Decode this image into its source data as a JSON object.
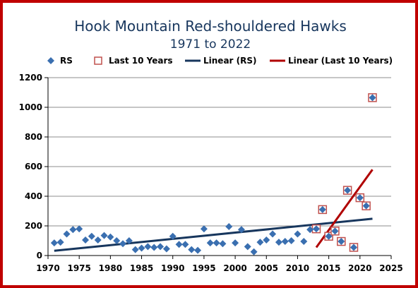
{
  "colors": {
    "border": "#c00000",
    "rs_marker": "#3a6fb0",
    "last10_marker": "#c0504d",
    "linear_rs": "#17365d",
    "linear_last10": "#b00000"
  },
  "chart_data": {
    "type": "scatter",
    "title": "Hook Mountain Red-shouldered Hawks",
    "subtitle": "1971 to 2022",
    "xlabel": "",
    "ylabel": "",
    "xlim": [
      1970,
      2025
    ],
    "ylim": [
      0,
      1200
    ],
    "xticks": [
      1970,
      1975,
      1980,
      1985,
      1990,
      1995,
      2000,
      2005,
      2010,
      2015,
      2020,
      2025
    ],
    "yticks": [
      0,
      200,
      400,
      600,
      800,
      1000,
      1200
    ],
    "grid": "horizontal",
    "legend": {
      "placement": "top",
      "entries": [
        "RS",
        "Last 10 Years",
        "Linear (RS)",
        "Linear (Last 10 Years)"
      ]
    },
    "series": [
      {
        "name": "RS",
        "marker": "diamond",
        "x": [
          1971,
          1972,
          1973,
          1974,
          1975,
          1976,
          1977,
          1978,
          1979,
          1980,
          1981,
          1982,
          1983,
          1984,
          1985,
          1986,
          1987,
          1988,
          1989,
          1990,
          1991,
          1992,
          1993,
          1994,
          1995,
          1996,
          1997,
          1998,
          1999,
          2000,
          2001,
          2002,
          2003,
          2004,
          2005,
          2006,
          2007,
          2008,
          2009,
          2010,
          2011,
          2012,
          2013,
          2014,
          2015,
          2016,
          2017,
          2018,
          2019,
          2020,
          2021,
          2022
        ],
        "y": [
          85,
          90,
          145,
          175,
          180,
          105,
          130,
          105,
          135,
          125,
          100,
          80,
          100,
          40,
          50,
          60,
          55,
          60,
          45,
          130,
          75,
          75,
          40,
          35,
          180,
          85,
          85,
          80,
          195,
          85,
          175,
          60,
          25,
          90,
          105,
          145,
          90,
          95,
          100,
          145,
          95,
          175,
          180,
          310,
          130,
          165,
          95,
          440,
          55,
          390,
          335,
          1065
        ]
      },
      {
        "name": "Last 10 Years",
        "marker": "square",
        "x": [
          2013,
          2014,
          2015,
          2016,
          2017,
          2018,
          2019,
          2020,
          2021,
          2022
        ],
        "y": [
          180,
          310,
          130,
          165,
          95,
          440,
          55,
          390,
          335,
          1065
        ]
      },
      {
        "name": "Linear (RS)",
        "type": "line",
        "x": [
          1971,
          2022
        ],
        "y": [
          32,
          248
        ]
      },
      {
        "name": "Linear (Last 10 Years)",
        "type": "line",
        "x": [
          2013,
          2022
        ],
        "y": [
          55,
          580
        ]
      }
    ]
  }
}
